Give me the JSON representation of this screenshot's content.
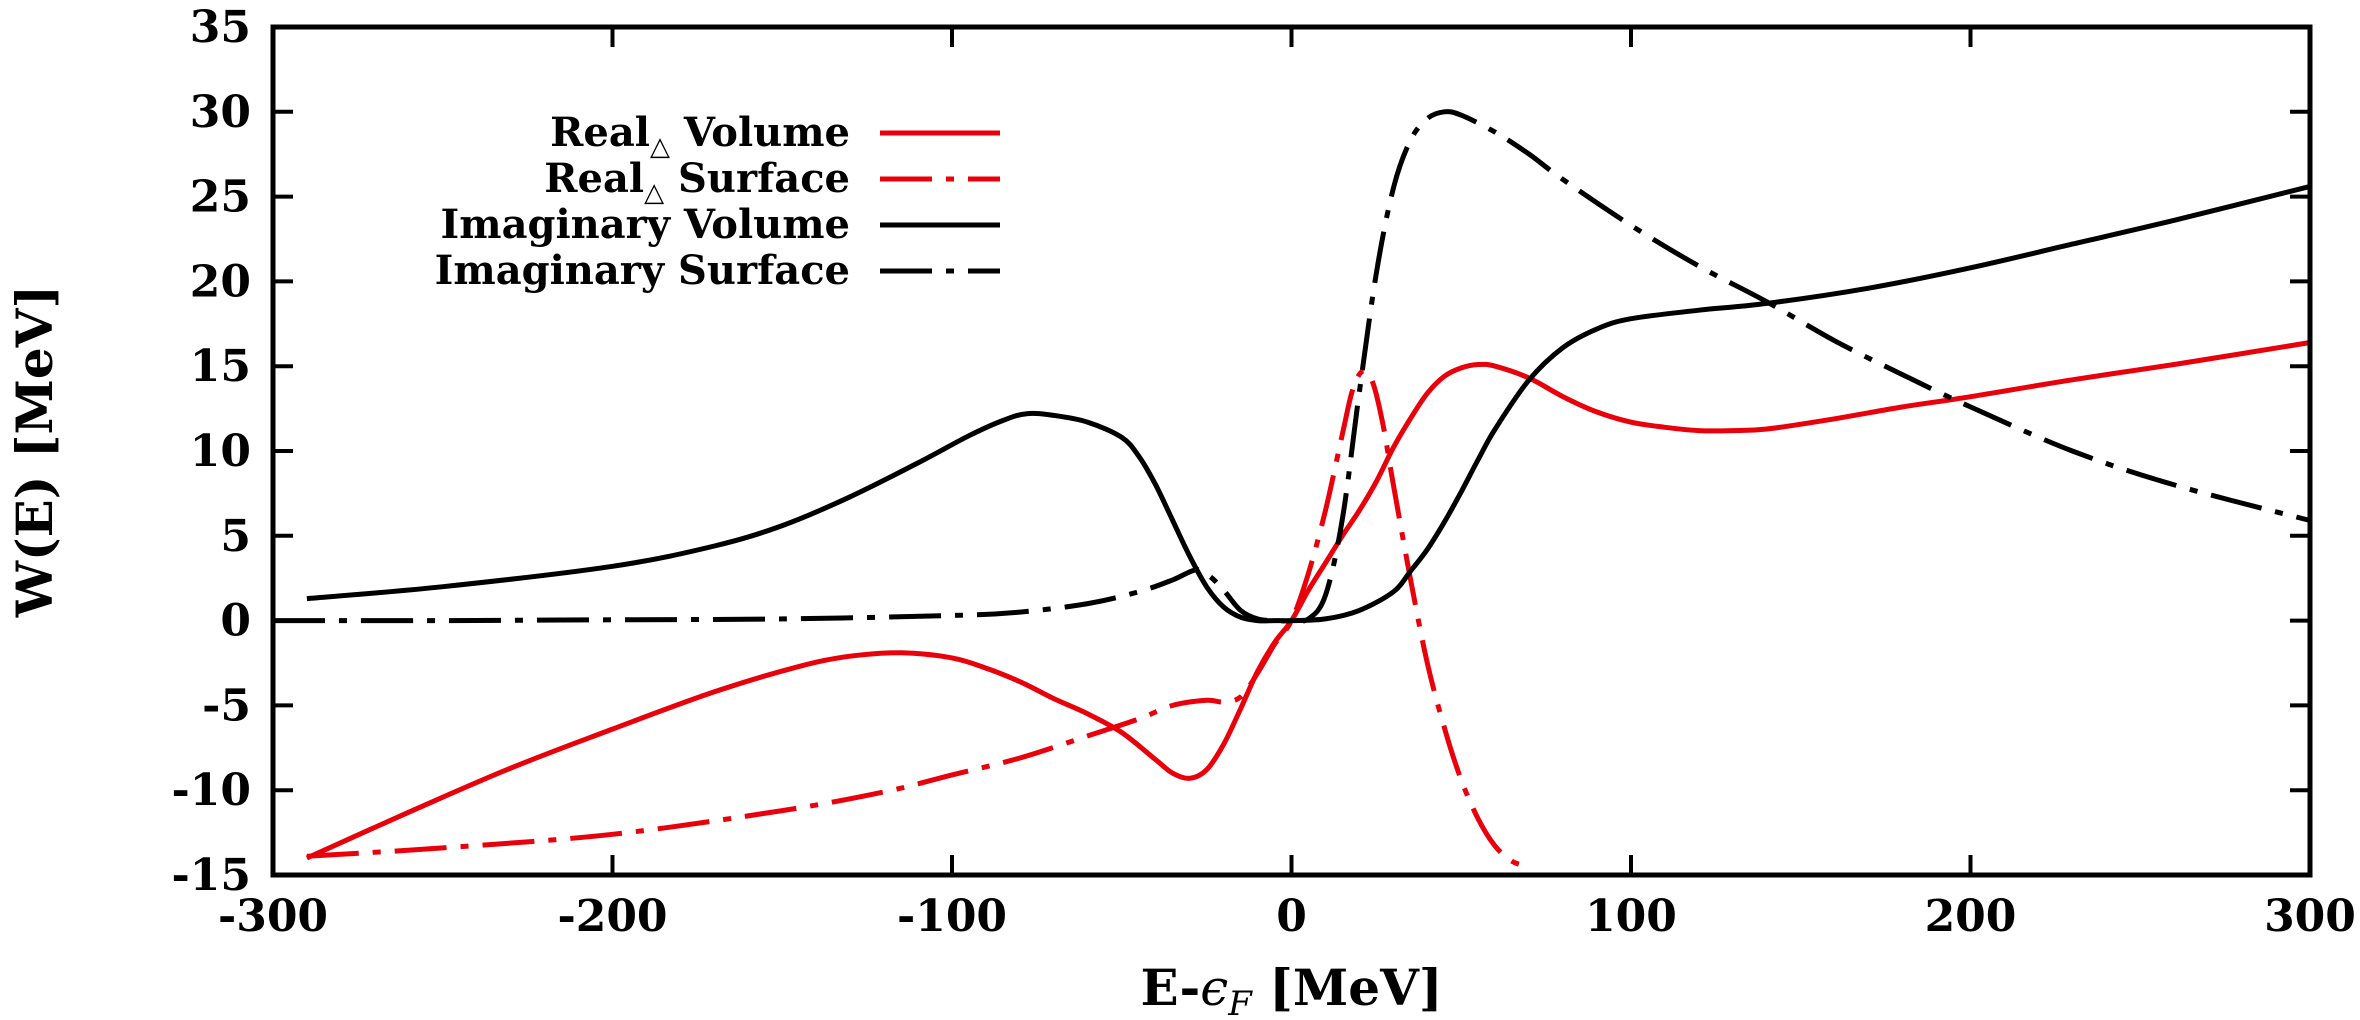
{
  "chart_data": {
    "type": "line",
    "xlabel": "E-ϵF [MeV]",
    "xlabel_parts": {
      "main": "E-",
      "symbol": "ϵ",
      "subscript": "F",
      "unit": " [MeV]"
    },
    "ylabel": "W(E) [MeV]",
    "xlim": [
      -300,
      300
    ],
    "ylim": [
      -15,
      35
    ],
    "xticks": [
      -300,
      -200,
      -100,
      0,
      100,
      200,
      300
    ],
    "yticks": [
      -15,
      -10,
      -5,
      0,
      5,
      10,
      15,
      20,
      25,
      30,
      35
    ],
    "grid": false,
    "legend_position": "top-left",
    "series": [
      {
        "name": "Real△ Volume",
        "legend_parts": {
          "main": "Real",
          "subscript": "△",
          "rest": " Volume"
        },
        "color": "#e8000b",
        "dash": "solid",
        "x": [
          -290,
          -260,
          -230,
          -200,
          -170,
          -145,
          -130,
          -115,
          -100,
          -90,
          -80,
          -70,
          -60,
          -50,
          -40,
          -35,
          -30,
          -25,
          -20,
          -15,
          -10,
          -5,
          0,
          5,
          10,
          15,
          20,
          25,
          30,
          35,
          40,
          45,
          50,
          55,
          60,
          70,
          80,
          90,
          100,
          110,
          120,
          130,
          140,
          160,
          180,
          200,
          230,
          260,
          300
        ],
        "y": [
          -14.0,
          -11.3,
          -8.7,
          -6.4,
          -4.2,
          -2.7,
          -2.1,
          -1.9,
          -2.2,
          -2.8,
          -3.6,
          -4.6,
          -5.5,
          -6.6,
          -8.2,
          -9.0,
          -9.3,
          -8.8,
          -7.3,
          -5.2,
          -3.0,
          -1.3,
          0.0,
          1.8,
          3.4,
          5.0,
          6.5,
          8.2,
          10.2,
          11.9,
          13.4,
          14.4,
          14.9,
          15.1,
          15.0,
          14.3,
          13.2,
          12.3,
          11.7,
          11.4,
          11.2,
          11.2,
          11.3,
          11.9,
          12.6,
          13.2,
          14.2,
          15.1,
          16.4
        ]
      },
      {
        "name": "Real△ Surface",
        "legend_parts": {
          "main": "Real",
          "subscript": "△",
          "rest": " Surface"
        },
        "color": "#e8000b",
        "dash": "dashdot",
        "x": [
          -290,
          -250,
          -200,
          -150,
          -120,
          -100,
          -80,
          -60,
          -45,
          -35,
          -25,
          -20,
          -15,
          -10,
          -5,
          0,
          5,
          10,
          15,
          18,
          21,
          24,
          27,
          30,
          35,
          40,
          45,
          50,
          55,
          60,
          65,
          70
        ],
        "y": [
          -13.9,
          -13.4,
          -12.6,
          -11.2,
          -10.1,
          -9.1,
          -8.1,
          -6.8,
          -5.8,
          -5.0,
          -4.7,
          -4.8,
          -4.5,
          -3.1,
          -1.4,
          0.0,
          2.8,
          6.5,
          11.0,
          13.6,
          14.7,
          14.0,
          11.5,
          8.0,
          2.5,
          -2.5,
          -6.3,
          -9.4,
          -11.7,
          -13.3,
          -14.2,
          -14.5
        ]
      },
      {
        "name": "Imaginary Volume",
        "legend_parts": {
          "main": "Imaginary",
          "subscript": "",
          "rest": " Volume"
        },
        "color": "#000000",
        "dash": "solid",
        "x": [
          -290,
          -250,
          -200,
          -170,
          -150,
          -130,
          -110,
          -95,
          -85,
          -78,
          -70,
          -60,
          -50,
          -45,
          -40,
          -35,
          -30,
          -25,
          -20,
          -15,
          -10,
          -5,
          0,
          10,
          20,
          30,
          35,
          40,
          45,
          50,
          55,
          60,
          70,
          80,
          90,
          100,
          120,
          140,
          170,
          200,
          230,
          260,
          300
        ],
        "y": [
          1.3,
          2.0,
          3.2,
          4.4,
          5.6,
          7.3,
          9.3,
          10.9,
          11.8,
          12.2,
          12.1,
          11.7,
          10.8,
          9.7,
          8.0,
          5.9,
          3.8,
          2.0,
          0.8,
          0.2,
          0.0,
          0.0,
          0.0,
          0.1,
          0.6,
          1.7,
          2.9,
          4.2,
          5.8,
          7.6,
          9.5,
          11.3,
          14.2,
          16.1,
          17.2,
          17.8,
          18.3,
          18.7,
          19.6,
          20.8,
          22.2,
          23.6,
          25.6
        ]
      },
      {
        "name": "Imaginary Surface",
        "legend_parts": {
          "main": "Imaginary",
          "subscript": "",
          "rest": " Surface"
        },
        "color": "#000000",
        "dash": "dashdot",
        "x": [
          -300,
          -250,
          -200,
          -150,
          -100,
          -80,
          -60,
          -45,
          -35,
          -28,
          -24,
          -20,
          -15,
          -10,
          -5,
          0,
          5,
          10,
          15,
          20,
          25,
          30,
          35,
          40,
          45,
          50,
          60,
          70,
          80,
          100,
          120,
          140,
          160,
          180,
          200,
          230,
          260,
          300
        ],
        "y": [
          0.0,
          0.0,
          0.05,
          0.1,
          0.3,
          0.5,
          1.0,
          1.7,
          2.4,
          3.0,
          2.6,
          1.8,
          0.6,
          0.1,
          0.0,
          0.0,
          0.1,
          1.5,
          6.0,
          13.5,
          20.5,
          25.5,
          28.3,
          29.6,
          30.0,
          29.8,
          28.8,
          27.5,
          26.0,
          23.3,
          20.9,
          18.8,
          16.5,
          14.5,
          12.6,
          10.0,
          8.0,
          5.9
        ]
      }
    ]
  }
}
